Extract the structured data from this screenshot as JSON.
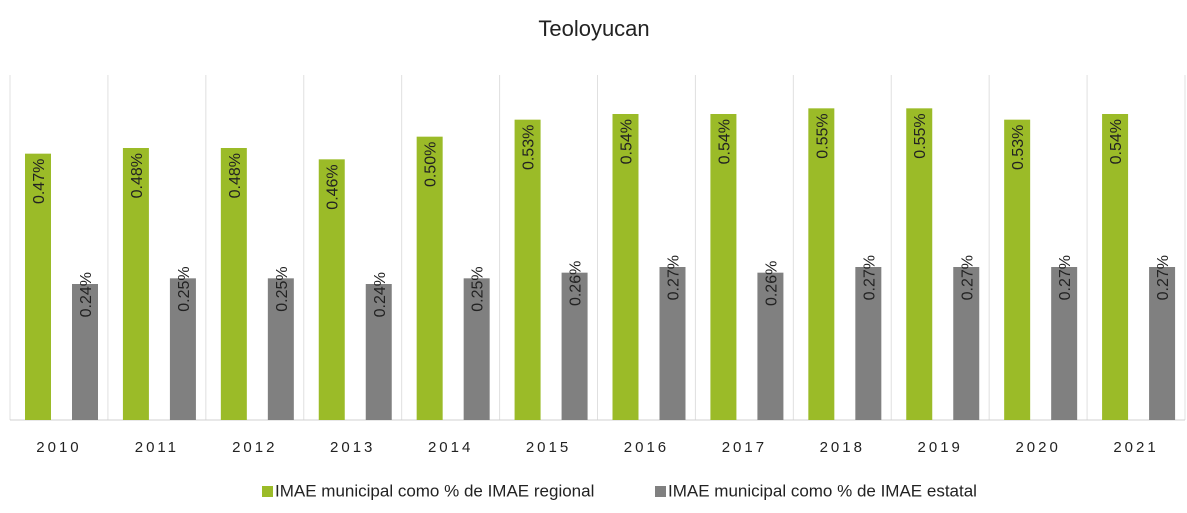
{
  "chart_data": {
    "type": "bar",
    "title": "Teoloyucan",
    "categories": [
      "2010",
      "2011",
      "2012",
      "2013",
      "2014",
      "2015",
      "2016",
      "2017",
      "2018",
      "2019",
      "2020",
      "2021"
    ],
    "series": [
      {
        "name": "IMAE municipal como % de IMAE regional",
        "color": "#9bbb28",
        "values": [
          0.47,
          0.48,
          0.48,
          0.46,
          0.5,
          0.53,
          0.54,
          0.54,
          0.55,
          0.55,
          0.53,
          0.54
        ],
        "value_labels": [
          "0.47%",
          "0.48%",
          "0.48%",
          "0.46%",
          "0.50%",
          "0.53%",
          "0.54%",
          "0.54%",
          "0.55%",
          "0.55%",
          "0.53%",
          "0.54%"
        ]
      },
      {
        "name": "IMAE municipal como % de IMAE estatal",
        "color": "#808080",
        "values": [
          0.24,
          0.25,
          0.25,
          0.24,
          0.25,
          0.26,
          0.27,
          0.26,
          0.27,
          0.27,
          0.27,
          0.27
        ],
        "value_labels": [
          "0.24%",
          "0.25%",
          "0.25%",
          "0.24%",
          "0.25%",
          "0.26%",
          "0.27%",
          "0.26%",
          "0.27%",
          "0.27%",
          "0.27%",
          "0.27%"
        ]
      }
    ],
    "ylim": [
      0,
      0.6
    ],
    "legend": "bottom"
  }
}
